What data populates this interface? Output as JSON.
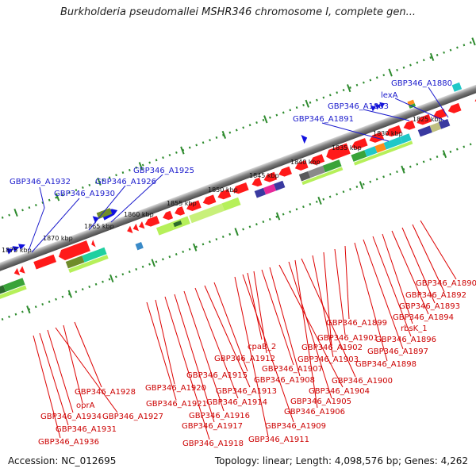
{
  "title": "Burkholderia pseudomallei MSHR346 chromosome I, complete gen...",
  "footer": {
    "accession": "Accession: NC_012695",
    "stats": "Topology: linear; Length: 4,098,576 bp; Genes: 4,262"
  },
  "scale": {
    "ticks": [
      "1825 kbp",
      "1830 kbp",
      "1835 kbp",
      "1840 kbp",
      "1845 kbp",
      "1850 kbp",
      "1855 kbp",
      "1860 kbp",
      "1865 kbp",
      "1870 kbp",
      "1875 kbp"
    ]
  },
  "colors": {
    "forward_gene_label": "#1a1acc",
    "reverse_gene_label": "#cc0000",
    "gene_feature": "#ff1a1a",
    "backbone": "#808080",
    "tick_green": "#2e8b2e"
  },
  "labels_top": [
    "GBP346_A1880",
    "lexA",
    "GBP346_A1883",
    "GBP346_A1891",
    "GBP346_A1925",
    "GBP346_A1926",
    "GBP346_A1932",
    "GBP346_A1930"
  ],
  "labels_bottom": [
    "GBP346_A1890",
    "GBP346_A1892",
    "GBP346_A1893",
    "GBP346_A1894",
    "rbsK_1",
    "GBP346_A1896",
    "GBP346_A1897",
    "GBP346_A1898",
    "GBP346_A1899",
    "GBP346_A1901",
    "GBP346_A1902",
    "GBP346_A1903",
    "GBP346_A1900",
    "cpaB_2",
    "GBP346_A1912",
    "GBP346_A1907",
    "GBP346_A1908",
    "GBP346_A1904",
    "GBP346_A1905",
    "GBP346_A1906",
    "GBP346_A1909",
    "GBP346_A1911",
    "GBP346_A1915",
    "GBP346_A1913",
    "GBP346_A1914",
    "GBP346_A1916",
    "GBP346_A1917",
    "GBP346_A1918",
    "GBP346_A1920",
    "GBP346_A1921",
    "GBP346_A1928",
    "oprA",
    "GBP346_A1927",
    "GBP346_A1934",
    "GBP346_A1931",
    "GBP346_A1936"
  ]
}
